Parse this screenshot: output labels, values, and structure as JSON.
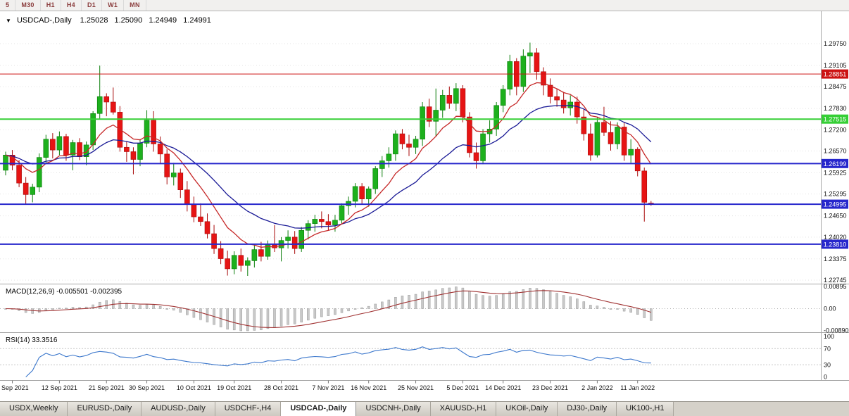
{
  "toolbar": {
    "timeframes": [
      "5",
      "M30",
      "H1",
      "H4",
      "D1",
      "W1",
      "MN"
    ]
  },
  "header": {
    "dropdown_icon": "▼",
    "symbol": "USDCAD-,Daily",
    "open": "1.25028",
    "high": "1.25090",
    "low": "1.24949",
    "close": "1.24991"
  },
  "price_axis": {
    "labels": [
      "1.29750",
      "1.29105",
      "1.28475",
      "1.27830",
      "1.27200",
      "1.26570",
      "1.25925",
      "1.25295",
      "1.24650",
      "1.24020",
      "1.23375",
      "1.22745"
    ]
  },
  "levels": [
    {
      "price": 1.28851,
      "label": "1.28851",
      "color": "#cc1111",
      "width": 1
    },
    {
      "price": 1.27515,
      "label": "1.27515",
      "color": "#35cf35",
      "width": 2
    },
    {
      "price": 1.26199,
      "label": "1.26199",
      "color": "#2626cc",
      "width": 2
    },
    {
      "price": 1.24995,
      "label": "1.24995",
      "color": "#2626cc",
      "width": 2
    },
    {
      "price": 1.2381,
      "label": "1.23810",
      "color": "#2626cc",
      "width": 2
    }
  ],
  "macd": {
    "label": "MACD(12,26,9) -0.005501 -0.002395",
    "params": {
      "fast": 12,
      "slow": 26,
      "signal": 9
    },
    "axis": [
      "0.00895",
      "0.00",
      "-0.00890"
    ]
  },
  "rsi": {
    "label": "RSI(14) 33.3516",
    "period": 14,
    "levels": [
      70,
      30
    ],
    "axis": [
      "100",
      "70",
      "30",
      "0"
    ]
  },
  "date_axis": {
    "ticks": [
      {
        "label": "2 Sep 2021",
        "index": 1
      },
      {
        "label": "12 Sep 2021",
        "index": 8
      },
      {
        "label": "21 Sep 2021",
        "index": 15
      },
      {
        "label": "30 Sep 2021",
        "index": 21
      },
      {
        "label": "10 Oct 2021",
        "index": 28
      },
      {
        "label": "19 Oct 2021",
        "index": 34
      },
      {
        "label": "28 Oct 2021",
        "index": 41
      },
      {
        "label": "7 Nov 2021",
        "index": 48
      },
      {
        "label": "16 Nov 2021",
        "index": 54
      },
      {
        "label": "25 Nov 2021",
        "index": 61
      },
      {
        "label": "5 Dec 2021",
        "index": 68
      },
      {
        "label": "14 Dec 2021",
        "index": 74
      },
      {
        "label": "23 Dec 2021",
        "index": 81
      },
      {
        "label": "2 Jan 2022",
        "index": 88
      },
      {
        "label": "11 Jan 2022",
        "index": 94
      }
    ]
  },
  "tabs": [
    {
      "label": "USDX,Weekly",
      "active": false
    },
    {
      "label": "EURUSD-,Daily",
      "active": false
    },
    {
      "label": "AUDUSD-,Daily",
      "active": false
    },
    {
      "label": "USDCHF-,H4",
      "active": false
    },
    {
      "label": "USDCAD-,Daily",
      "active": true
    },
    {
      "label": "USDCNH-,Daily",
      "active": false
    },
    {
      "label": "XAUUSD-,H1",
      "active": false
    },
    {
      "label": "UKOil-,Daily",
      "active": false
    },
    {
      "label": "DJ30-,Daily",
      "active": false
    },
    {
      "label": "UK100-,H1",
      "active": false
    }
  ],
  "colors": {
    "bull": "#1db01d",
    "bull_dark": "#0c7e0c",
    "bear": "#e61414",
    "bear_dark": "#a80a0a",
    "ma_fast": "#c62828",
    "ma_slow": "#1a1a96",
    "macd_hist": "#c9c9c9",
    "macd_hist_edge": "#9a9a9a",
    "macd_signal": "#a03232",
    "rsi_line": "#3b77cc"
  },
  "chart_data": {
    "type": "candlestick",
    "symbol": "USDCAD",
    "timeframe": "Daily",
    "title": "USDCAD-,Daily",
    "y_range": [
      1.22745,
      1.2975
    ],
    "current_ohlc": {
      "open": 1.25028,
      "high": 1.2509,
      "low": 1.24949,
      "close": 1.24991
    },
    "candles": [
      [
        1.26,
        1.2655,
        1.2585,
        1.2645
      ],
      [
        1.2645,
        1.266,
        1.26,
        1.2615
      ],
      [
        1.2615,
        1.263,
        1.255,
        1.2562
      ],
      [
        1.2562,
        1.258,
        1.25,
        1.2528
      ],
      [
        1.2528,
        1.256,
        1.2505,
        1.255
      ],
      [
        1.255,
        1.265,
        1.2535,
        1.2638
      ],
      [
        1.2638,
        1.2705,
        1.262,
        1.2692
      ],
      [
        1.2692,
        1.271,
        1.2635,
        1.266
      ],
      [
        1.266,
        1.2715,
        1.2645,
        1.27
      ],
      [
        1.27,
        1.2708,
        1.2628,
        1.2645
      ],
      [
        1.2645,
        1.269,
        1.26,
        1.2682
      ],
      [
        1.2682,
        1.2695,
        1.263,
        1.264
      ],
      [
        1.264,
        1.2685,
        1.2615,
        1.2675
      ],
      [
        1.2675,
        1.2775,
        1.266,
        1.2768
      ],
      [
        1.2768,
        1.291,
        1.275,
        1.2818
      ],
      [
        1.2818,
        1.2828,
        1.276,
        1.2802
      ],
      [
        1.2802,
        1.2845,
        1.2765,
        1.2772
      ],
      [
        1.2772,
        1.279,
        1.2655,
        1.2668
      ],
      [
        1.2668,
        1.2685,
        1.2625,
        1.2655
      ],
      [
        1.2655,
        1.2668,
        1.2588,
        1.2632
      ],
      [
        1.2632,
        1.2692,
        1.2612,
        1.268
      ],
      [
        1.268,
        1.2778,
        1.2668,
        1.2748
      ],
      [
        1.2748,
        1.2775,
        1.2655,
        1.2678
      ],
      [
        1.2678,
        1.27,
        1.262,
        1.2648
      ],
      [
        1.2648,
        1.2662,
        1.2558,
        1.258
      ],
      [
        1.258,
        1.2622,
        1.2555,
        1.2592
      ],
      [
        1.2592,
        1.2605,
        1.2518,
        1.2542
      ],
      [
        1.2542,
        1.2568,
        1.2478,
        1.25
      ],
      [
        1.25,
        1.2522,
        1.2446,
        1.2462
      ],
      [
        1.2462,
        1.2502,
        1.2435,
        1.2448
      ],
      [
        1.2448,
        1.2472,
        1.2398,
        1.2412
      ],
      [
        1.2412,
        1.2438,
        1.2352,
        1.2368
      ],
      [
        1.2368,
        1.239,
        1.2322,
        1.2338
      ],
      [
        1.2338,
        1.2362,
        1.2288,
        1.2308
      ],
      [
        1.2308,
        1.236,
        1.2292,
        1.2348
      ],
      [
        1.2348,
        1.2368,
        1.23,
        1.2318
      ],
      [
        1.2318,
        1.2342,
        1.2287,
        1.2332
      ],
      [
        1.2332,
        1.2378,
        1.2312,
        1.2365
      ],
      [
        1.2365,
        1.2388,
        1.233,
        1.2345
      ],
      [
        1.2345,
        1.2392,
        1.2335,
        1.2382
      ],
      [
        1.2382,
        1.2438,
        1.2358,
        1.237
      ],
      [
        1.237,
        1.2402,
        1.233,
        1.2392
      ],
      [
        1.2392,
        1.2422,
        1.2368,
        1.2402
      ],
      [
        1.2402,
        1.242,
        1.2352,
        1.2368
      ],
      [
        1.2368,
        1.2432,
        1.2358,
        1.2422
      ],
      [
        1.2422,
        1.2452,
        1.2395,
        1.2442
      ],
      [
        1.2442,
        1.2468,
        1.2418,
        1.2455
      ],
      [
        1.2455,
        1.2478,
        1.2428,
        1.2448
      ],
      [
        1.2448,
        1.247,
        1.2422,
        1.2438
      ],
      [
        1.2438,
        1.2468,
        1.2418,
        1.2452
      ],
      [
        1.2452,
        1.2502,
        1.244,
        1.2495
      ],
      [
        1.2495,
        1.2522,
        1.2468,
        1.2508
      ],
      [
        1.2508,
        1.2562,
        1.249,
        1.2552
      ],
      [
        1.2552,
        1.2562,
        1.2498,
        1.2515
      ],
      [
        1.2515,
        1.2552,
        1.2492,
        1.2545
      ],
      [
        1.2545,
        1.2612,
        1.253,
        1.2605
      ],
      [
        1.2605,
        1.2642,
        1.258,
        1.2628
      ],
      [
        1.2628,
        1.2668,
        1.2608,
        1.2648
      ],
      [
        1.2648,
        1.2718,
        1.2628,
        1.2708
      ],
      [
        1.2708,
        1.2722,
        1.2662,
        1.2678
      ],
      [
        1.2678,
        1.2705,
        1.2642,
        1.2668
      ],
      [
        1.2668,
        1.2702,
        1.2648,
        1.2692
      ],
      [
        1.2692,
        1.2802,
        1.2672,
        1.2788
      ],
      [
        1.2788,
        1.2812,
        1.2728,
        1.2745
      ],
      [
        1.2745,
        1.2842,
        1.2702,
        1.2778
      ],
      [
        1.2778,
        1.2838,
        1.2755,
        1.2822
      ],
      [
        1.2822,
        1.2848,
        1.2782,
        1.2798
      ],
      [
        1.2798,
        1.2858,
        1.2775,
        1.2842
      ],
      [
        1.2842,
        1.2852,
        1.2742,
        1.2758
      ],
      [
        1.2758,
        1.2772,
        1.2638,
        1.2652
      ],
      [
        1.2652,
        1.2682,
        1.2605,
        1.2628
      ],
      [
        1.2628,
        1.2722,
        1.2618,
        1.2708
      ],
      [
        1.2708,
        1.2748,
        1.2682,
        1.2722
      ],
      [
        1.2722,
        1.2802,
        1.2702,
        1.2792
      ],
      [
        1.2792,
        1.2852,
        1.2772,
        1.284
      ],
      [
        1.284,
        1.2942,
        1.2822,
        1.2922
      ],
      [
        1.2922,
        1.2932,
        1.2822,
        1.2848
      ],
      [
        1.2848,
        1.2958,
        1.2832,
        1.2938
      ],
      [
        1.2938,
        1.2978,
        1.2888,
        1.2948
      ],
      [
        1.2948,
        1.2962,
        1.2868,
        1.2892
      ],
      [
        1.2892,
        1.2905,
        1.2822,
        1.2852
      ],
      [
        1.2852,
        1.2872,
        1.2798,
        1.2818
      ],
      [
        1.2818,
        1.2842,
        1.2788,
        1.2808
      ],
      [
        1.2808,
        1.2832,
        1.2768,
        1.2785
      ],
      [
        1.2785,
        1.2822,
        1.2762,
        1.2802
      ],
      [
        1.2802,
        1.2818,
        1.2738,
        1.2758
      ],
      [
        1.2758,
        1.2782,
        1.2688,
        1.2708
      ],
      [
        1.2708,
        1.2738,
        1.2628,
        1.2645
      ],
      [
        1.2645,
        1.2758,
        1.2638,
        1.2742
      ],
      [
        1.2742,
        1.2788,
        1.2702,
        1.2712
      ],
      [
        1.2712,
        1.2745,
        1.2658,
        1.2678
      ],
      [
        1.2678,
        1.2742,
        1.2662,
        1.2728
      ],
      [
        1.2728,
        1.2742,
        1.2628,
        1.2645
      ],
      [
        1.2645,
        1.2692,
        1.2622,
        1.2662
      ],
      [
        1.2662,
        1.2668,
        1.2582,
        1.2598
      ],
      [
        1.2598,
        1.2608,
        1.2448,
        1.2505
      ],
      [
        1.25028,
        1.2509,
        1.24949,
        1.24991
      ]
    ]
  }
}
